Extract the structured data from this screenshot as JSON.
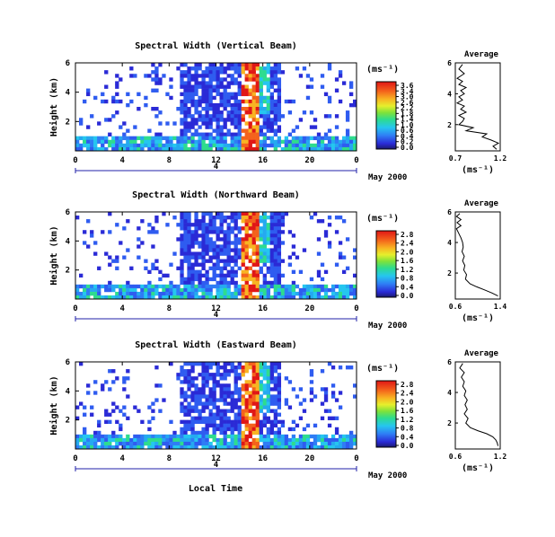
{
  "figure": {
    "x_axis_title": "Local Time",
    "date_label": "May 2000",
    "unit_label": "(ms⁻¹)"
  },
  "chart_data": [
    {
      "type": "heatmap",
      "title": "Spectral Width (Vertical Beam)",
      "ylabel": "Height (km)",
      "x_ticks": [
        "0",
        "4",
        "8",
        "12",
        "16",
        "20",
        "0"
      ],
      "y_ticks": [
        "6",
        "4",
        "2"
      ],
      "xlim": [
        0,
        24
      ],
      "ylim": [
        0,
        6
      ],
      "day_label": "4",
      "colorbar": {
        "label": "(ms⁻¹)",
        "ticks": [
          "3.6",
          "3.4",
          "3.0",
          "2.6",
          "2.2",
          "1.8",
          "1.4",
          "1.0",
          "0.6",
          "0.4",
          "0.2",
          "0.0"
        ],
        "range": [
          0,
          3.6
        ]
      },
      "average_profile": {
        "title": "Average",
        "xlabel": "(ms⁻¹)",
        "x_ticks": [
          "0.7",
          "1.2"
        ],
        "xlim": [
          0.7,
          1.2
        ],
        "y_ticks": [
          "6",
          "4",
          "2"
        ],
        "ylim": [
          0.3,
          6
        ],
        "points": [
          [
            0.78,
            5.9
          ],
          [
            0.74,
            5.6
          ],
          [
            0.8,
            5.3
          ],
          [
            0.72,
            5.0
          ],
          [
            0.78,
            4.8
          ],
          [
            0.74,
            4.6
          ],
          [
            0.82,
            4.4
          ],
          [
            0.76,
            4.2
          ],
          [
            0.8,
            4.0
          ],
          [
            0.74,
            3.8
          ],
          [
            0.78,
            3.6
          ],
          [
            0.72,
            3.4
          ],
          [
            0.8,
            3.2
          ],
          [
            0.76,
            3.0
          ],
          [
            0.82,
            2.8
          ],
          [
            0.74,
            2.6
          ],
          [
            0.8,
            2.4
          ],
          [
            0.78,
            2.2
          ],
          [
            0.74,
            2.0
          ],
          [
            0.9,
            1.8
          ],
          [
            0.82,
            1.6
          ],
          [
            1.05,
            1.4
          ],
          [
            1.0,
            1.2
          ],
          [
            1.1,
            1.0
          ],
          [
            1.18,
            0.8
          ],
          [
            1.12,
            0.6
          ],
          [
            1.16,
            0.4
          ]
        ]
      }
    },
    {
      "type": "heatmap",
      "title": "Spectral Width (Northward Beam)",
      "ylabel": "Height (km)",
      "x_ticks": [
        "0",
        "4",
        "8",
        "12",
        "16",
        "20",
        "0"
      ],
      "y_ticks": [
        "6",
        "4",
        "2"
      ],
      "xlim": [
        0,
        24
      ],
      "ylim": [
        0,
        6
      ],
      "day_label": "4",
      "colorbar": {
        "label": "(ms⁻¹)",
        "ticks": [
          "2.8",
          "2.4",
          "2.0",
          "1.6",
          "1.2",
          "0.8",
          "0.4",
          "0.0"
        ],
        "range": [
          0,
          2.8
        ]
      },
      "average_profile": {
        "title": "Average",
        "xlabel": "(ms⁻¹)",
        "x_ticks": [
          "0.6",
          "1.4"
        ],
        "xlim": [
          0.6,
          1.4
        ],
        "y_ticks": [
          "6",
          "4",
          "2"
        ],
        "ylim": [
          0.3,
          6
        ],
        "points": [
          [
            0.68,
            5.9
          ],
          [
            0.62,
            5.7
          ],
          [
            0.7,
            5.5
          ],
          [
            0.63,
            5.3
          ],
          [
            0.7,
            5.1
          ],
          [
            0.62,
            4.9
          ],
          [
            0.66,
            4.6
          ],
          [
            0.7,
            4.3
          ],
          [
            0.73,
            4.0
          ],
          [
            0.74,
            3.7
          ],
          [
            0.72,
            3.4
          ],
          [
            0.76,
            3.1
          ],
          [
            0.73,
            2.8
          ],
          [
            0.77,
            2.5
          ],
          [
            0.75,
            2.2
          ],
          [
            0.8,
            1.9
          ],
          [
            0.78,
            1.6
          ],
          [
            0.86,
            1.3
          ],
          [
            0.98,
            1.1
          ],
          [
            1.12,
            0.9
          ],
          [
            1.25,
            0.7
          ],
          [
            1.36,
            0.5
          ]
        ]
      }
    },
    {
      "type": "heatmap",
      "title": "Spectral Width (Eastward Beam)",
      "ylabel": "Height (km)",
      "x_ticks": [
        "0",
        "4",
        "8",
        "12",
        "16",
        "20",
        "0"
      ],
      "y_ticks": [
        "6",
        "4",
        "2"
      ],
      "xlim": [
        0,
        24
      ],
      "ylim": [
        0,
        6
      ],
      "day_label": "4",
      "colorbar": {
        "label": "(ms⁻¹)",
        "ticks": [
          "2.8",
          "2.4",
          "2.0",
          "1.6",
          "1.2",
          "0.8",
          "0.4",
          "0.0"
        ],
        "range": [
          0,
          2.8
        ]
      },
      "average_profile": {
        "title": "Average",
        "xlabel": "(ms⁻¹)",
        "x_ticks": [
          "0.6",
          "1.2"
        ],
        "xlim": [
          0.6,
          1.2
        ],
        "y_ticks": [
          "6",
          "4",
          "2"
        ],
        "ylim": [
          0.3,
          6
        ],
        "points": [
          [
            0.7,
            5.9
          ],
          [
            0.66,
            5.6
          ],
          [
            0.72,
            5.3
          ],
          [
            0.68,
            5.0
          ],
          [
            0.72,
            4.7
          ],
          [
            0.7,
            4.4
          ],
          [
            0.74,
            4.1
          ],
          [
            0.72,
            3.8
          ],
          [
            0.76,
            3.5
          ],
          [
            0.73,
            3.2
          ],
          [
            0.76,
            2.9
          ],
          [
            0.72,
            2.6
          ],
          [
            0.77,
            2.3
          ],
          [
            0.74,
            2.0
          ],
          [
            0.8,
            1.7
          ],
          [
            0.9,
            1.5
          ],
          [
            1.02,
            1.3
          ],
          [
            1.1,
            1.1
          ],
          [
            1.14,
            0.9
          ],
          [
            1.16,
            0.7
          ],
          [
            1.17,
            0.5
          ]
        ]
      }
    }
  ]
}
